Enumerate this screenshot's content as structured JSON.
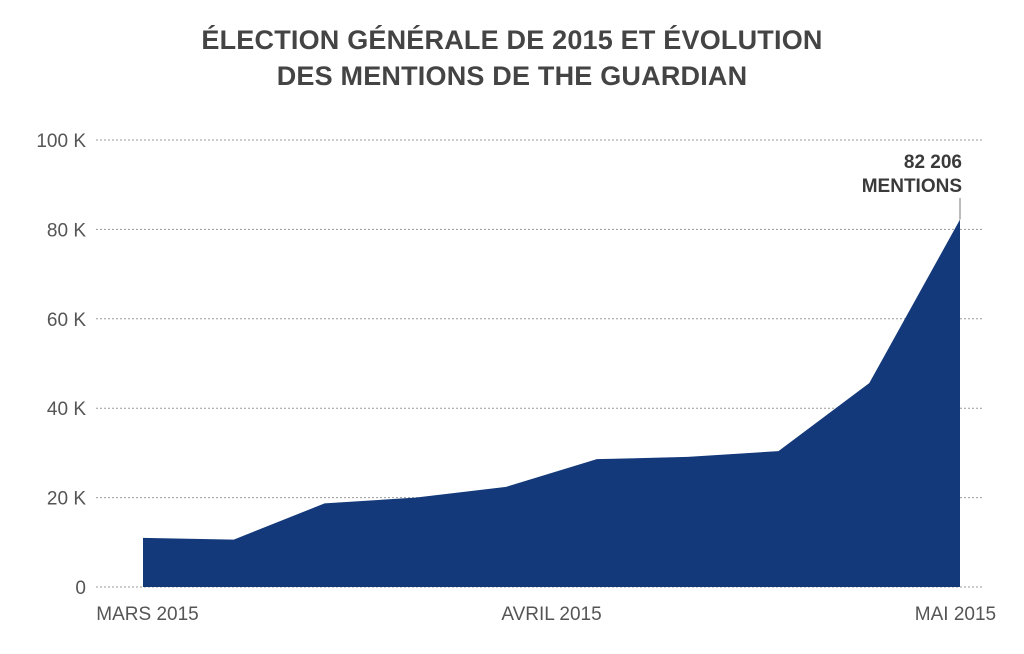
{
  "chart_data": {
    "type": "area",
    "title_lines": [
      "ÉLECTION GÉNÉRALE DE 2015 ET ÉVOLUTION",
      "DES MENTIONS DE THE GUARDIAN"
    ],
    "x": [
      0,
      1,
      2,
      3,
      4,
      5,
      6,
      7,
      8,
      9
    ],
    "values": [
      11000,
      10600,
      18700,
      20000,
      22400,
      28600,
      29100,
      30400,
      45600,
      82206
    ],
    "x_tick_labels": [
      {
        "x": 0.05,
        "label": "MARS 2015"
      },
      {
        "x": 4.5,
        "label": "AVRIL 2015"
      },
      {
        "x": 8.95,
        "label": "MAI 2015"
      }
    ],
    "y_ticks": [
      0,
      20000,
      40000,
      60000,
      80000,
      100000
    ],
    "y_tick_labels": [
      "0",
      "20 K",
      "40 K",
      "60 K",
      "80 K",
      "100 K"
    ],
    "ylim": [
      0,
      100000
    ],
    "grid": true,
    "annotation": {
      "lines": [
        "82 206",
        "MENTIONS"
      ],
      "point_index": 9
    },
    "colors": {
      "area": "#13397a",
      "grid": "#9a9a9a",
      "title": "#444444"
    }
  }
}
